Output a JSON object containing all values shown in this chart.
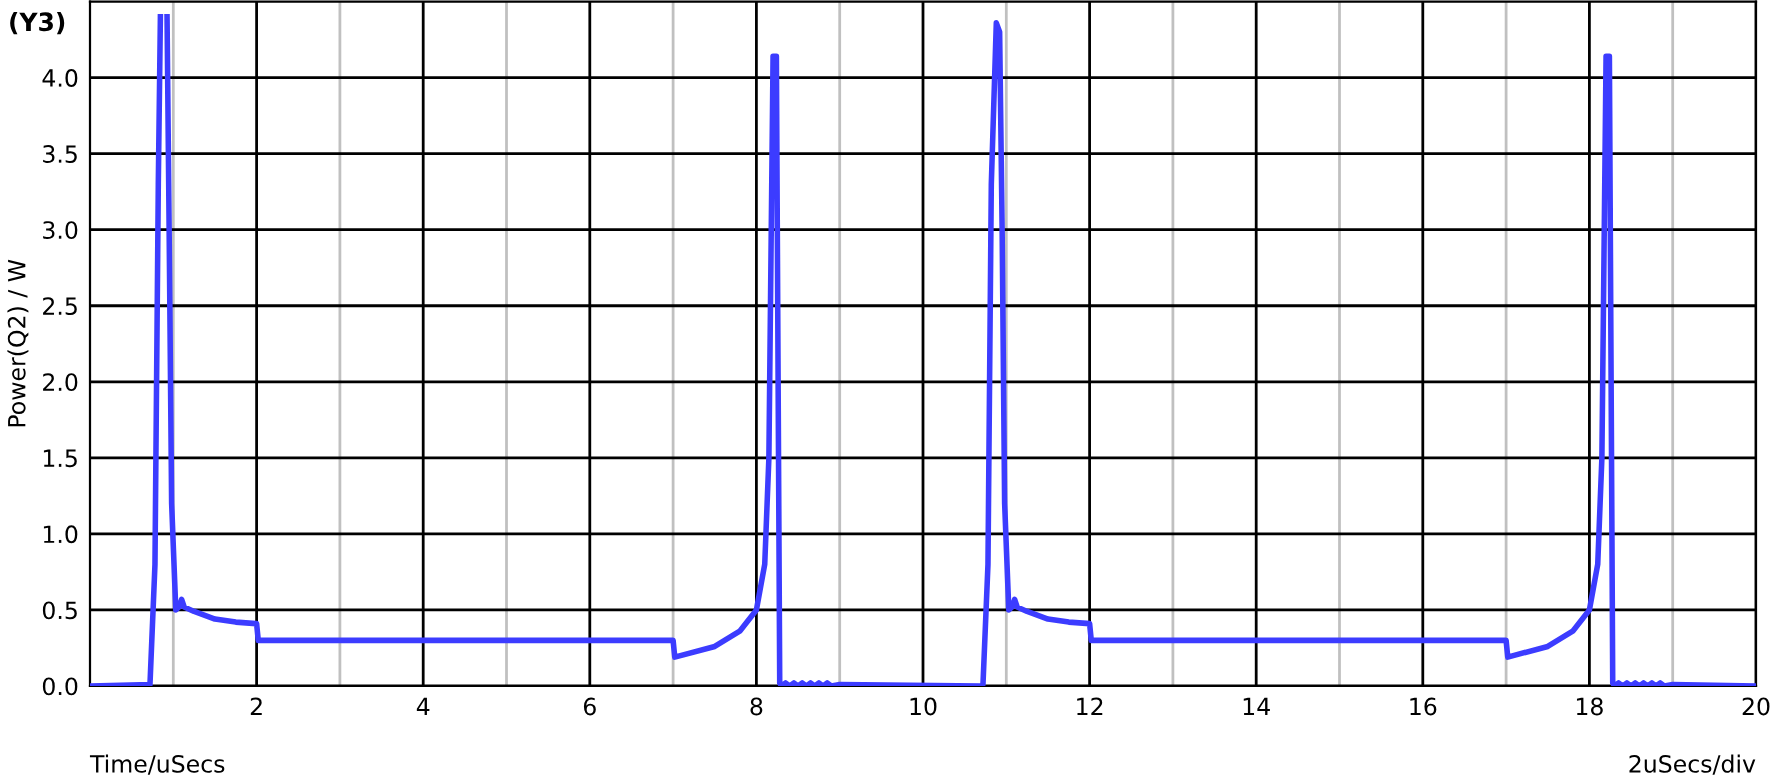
{
  "chart_data": {
    "type": "line",
    "xlabel": "Time/uSecs",
    "ylabel": "Power(Q2) / W",
    "annotations": [
      "(Y3)",
      "2uSecs/div"
    ],
    "xlim": [
      0,
      20
    ],
    "ylim": [
      0,
      4.5
    ],
    "xticks": [
      {
        "value": 1,
        "label": null
      },
      2,
      {
        "value": 3,
        "label": null
      },
      4,
      {
        "value": 5,
        "label": null
      },
      6,
      {
        "value": 7,
        "label": null
      },
      8,
      {
        "value": 9,
        "label": null
      },
      10,
      {
        "value": 11,
        "label": null
      },
      12,
      {
        "value": 13,
        "label": null
      },
      14,
      {
        "value": 15,
        "label": null
      },
      16,
      {
        "value": 17,
        "label": null
      },
      18,
      {
        "value": 19,
        "label": null
      },
      20
    ],
    "yticks": [
      {
        "value": 0,
        "label": "0.0"
      },
      0.5,
      {
        "value": 1,
        "label": "1.0"
      },
      1.5,
      {
        "value": 2,
        "label": "2.0"
      },
      2.5,
      {
        "value": 3,
        "label": "3.0"
      },
      3.5,
      {
        "value": 4,
        "label": "4.0"
      }
    ],
    "grid": true,
    "marker": "none",
    "line_style": "solid",
    "series": [
      {
        "color": "#3c3cff",
        "x": [
          0,
          0.72,
          0.78,
          0.82,
          0.845,
          0.86,
          0.9,
          0.925,
          0.95,
          0.98,
          1.03,
          1.07,
          1.1,
          1.13,
          1.25,
          1.5,
          1.75,
          2.0,
          2.02,
          7.0,
          7.02,
          7.5,
          7.8,
          8.0,
          8.1,
          8.15,
          8.2,
          8.24,
          8.28,
          8.3,
          8.35,
          8.4,
          8.45,
          8.5,
          8.55,
          8.6,
          8.65,
          8.7,
          8.75,
          8.8,
          8.85,
          8.9,
          9.0,
          10.7,
          10.72,
          10.78,
          10.82,
          10.88,
          10.92,
          10.95,
          10.98,
          11.03,
          11.07,
          11.1,
          11.13,
          11.25,
          11.5,
          11.75,
          12.0,
          12.02,
          17.0,
          17.02,
          17.5,
          17.8,
          18.0,
          18.1,
          18.15,
          18.2,
          18.24,
          18.28,
          18.3,
          18.35,
          18.4,
          18.45,
          18.5,
          18.55,
          18.6,
          18.65,
          18.7,
          18.75,
          18.8,
          18.85,
          18.9,
          19.0,
          20.0
        ],
        "values": [
          0,
          0.01,
          0.8,
          3.3,
          4.4,
          null,
          null,
          4.4,
          3.0,
          1.2,
          0.5,
          0.52,
          0.57,
          0.52,
          0.49,
          0.44,
          0.42,
          0.41,
          0.3,
          0.3,
          0.19,
          0.26,
          0.36,
          0.5,
          0.8,
          1.5,
          4.14,
          4.14,
          0.02,
          0,
          0.02,
          0,
          0.02,
          0,
          0.02,
          0,
          0.02,
          0,
          0.02,
          0,
          0.02,
          0,
          0.01,
          0,
          0.01,
          0.8,
          3.3,
          4.36,
          4.3,
          3.0,
          1.2,
          0.5,
          0.52,
          0.57,
          0.52,
          0.49,
          0.44,
          0.42,
          0.41,
          0.3,
          0.3,
          0.19,
          0.26,
          0.36,
          0.5,
          0.8,
          1.5,
          4.14,
          4.14,
          0.02,
          0,
          0.02,
          0,
          0.02,
          0,
          0.02,
          0,
          0.02,
          0,
          0.02,
          0,
          0.02,
          0,
          0.01,
          0
        ]
      }
    ]
  }
}
